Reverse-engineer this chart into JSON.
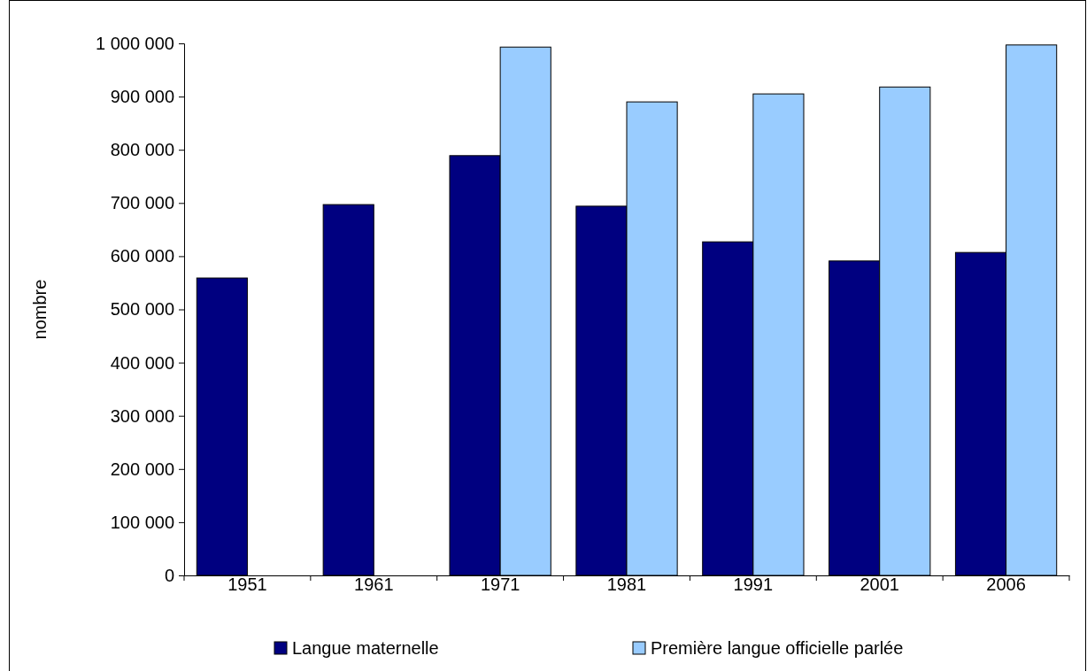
{
  "chart_data": {
    "type": "bar",
    "ylabel": "nombre",
    "categories": [
      "1951",
      "1961",
      "1971",
      "1981",
      "1991",
      "2001",
      "2006"
    ],
    "series": [
      {
        "name": "Langue maternelle",
        "color": "#000080",
        "values": [
          559000,
          697000,
          789000,
          694000,
          627000,
          591000,
          607000
        ]
      },
      {
        "name": "Première langue officielle parlée",
        "color": "#99ccff",
        "values": [
          null,
          null,
          993000,
          890000,
          905000,
          918000,
          997000
        ]
      }
    ],
    "ylim": [
      0,
      1000000
    ],
    "yticks": [
      0,
      {
        "value": 100000,
        "label": "100 000"
      },
      {
        "value": 200000,
        "label": "200 000"
      },
      {
        "value": 300000,
        "label": "300 000"
      },
      {
        "value": 400000,
        "label": "400 000"
      },
      {
        "value": 500000,
        "label": "500 000"
      },
      {
        "value": 600000,
        "label": "600 000"
      },
      {
        "value": 700000,
        "label": "700 000"
      },
      {
        "value": 800000,
        "label": "800 000"
      },
      {
        "value": 900000,
        "label": "900 000"
      },
      {
        "value": 1000000,
        "label": "1 000 000"
      }
    ],
    "grid": false,
    "legend": "bottom"
  }
}
